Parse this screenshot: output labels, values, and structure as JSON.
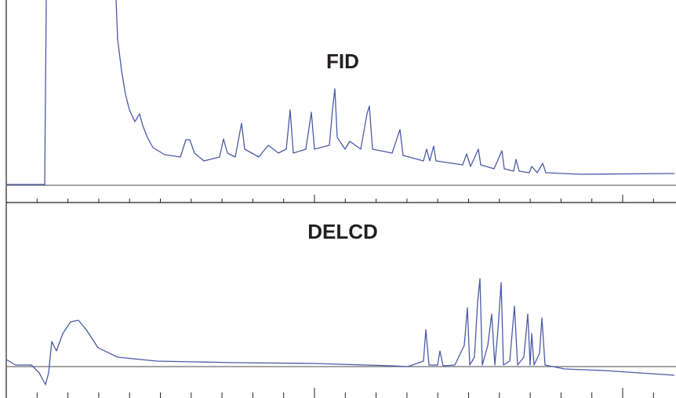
{
  "panels": [
    {
      "label": "FID"
    },
    {
      "label": "DELCD"
    }
  ]
}
